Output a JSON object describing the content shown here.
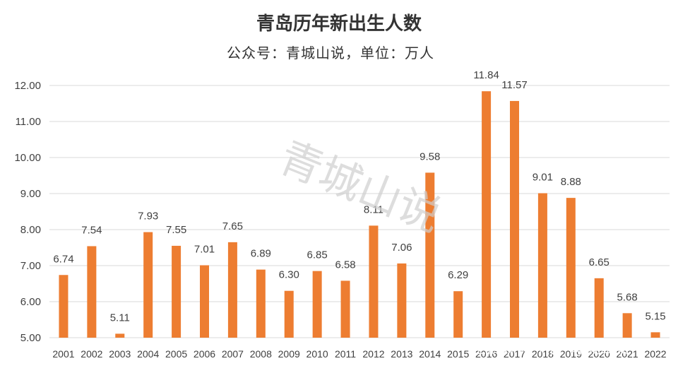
{
  "chart_data": {
    "type": "bar",
    "title": "青岛历年新出生人数",
    "subtitle": "公众号：青城山说，单位：万人",
    "categories": [
      "2001",
      "2002",
      "2003",
      "2004",
      "2005",
      "2006",
      "2007",
      "2008",
      "2009",
      "2010",
      "2011",
      "2012",
      "2013",
      "2014",
      "2015",
      "2016",
      "2017",
      "2018",
      "2019",
      "2020",
      "2021",
      "2022"
    ],
    "values": [
      6.74,
      7.54,
      5.11,
      7.93,
      7.55,
      7.01,
      7.65,
      6.89,
      6.3,
      6.85,
      6.58,
      8.11,
      7.06,
      9.58,
      6.29,
      11.84,
      11.57,
      9.01,
      8.88,
      6.65,
      5.68,
      5.15
    ],
    "value_labels": [
      "6.74",
      "7.54",
      "5.11",
      "7.93",
      "7.55",
      "7.01",
      "7.65",
      "6.89",
      "6.30",
      "6.85",
      "6.58",
      "8.11",
      "7.06",
      "9.58",
      "6.29",
      "11.84",
      "11.57",
      "9.01",
      "8.88",
      "6.65",
      "5.68",
      "5.15"
    ],
    "ylim": [
      5,
      12
    ],
    "yticks": [
      "5.00",
      "6.00",
      "7.00",
      "8.00",
      "9.00",
      "10.00",
      "11.00",
      "12.00"
    ],
    "grid": true,
    "bar_color": "#ED7D31",
    "watermark": "青城山说",
    "watermark_bottom": "企鹅媒体平台 青城山说"
  }
}
